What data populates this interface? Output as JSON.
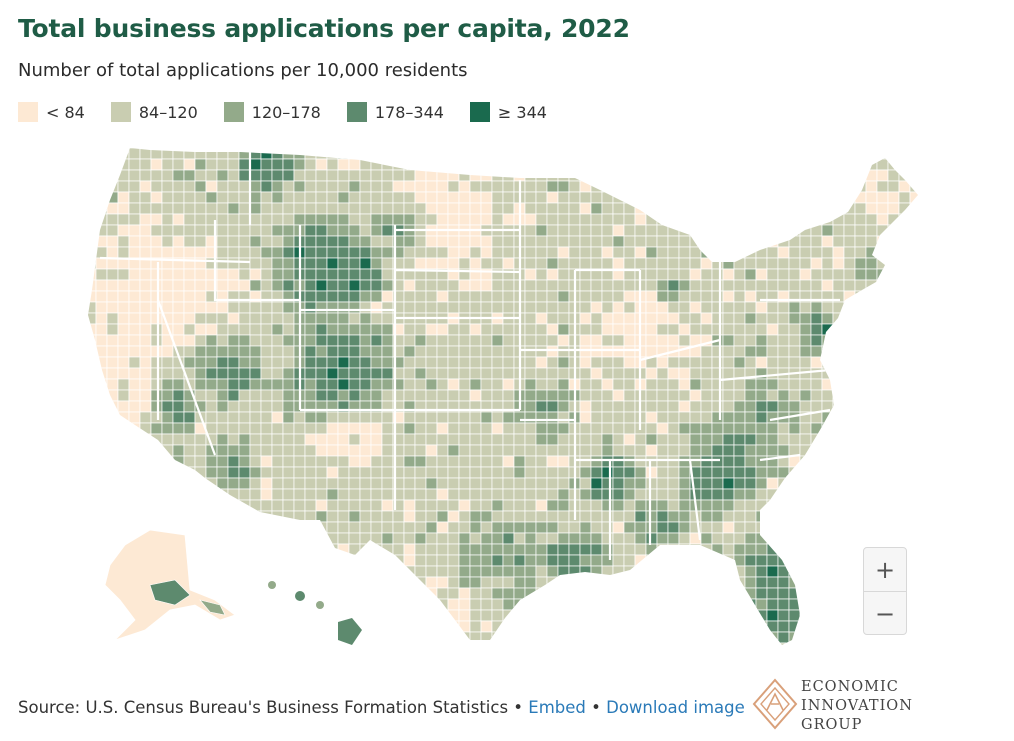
{
  "title": "Total business applications per capita, 2022",
  "subtitle": "Number of total applications per 10,000 residents",
  "legend": {
    "items": [
      {
        "label": "< 84",
        "color": "#fde9d4"
      },
      {
        "label": "84–120",
        "color": "#c9cdb1"
      },
      {
        "label": "120–178",
        "color": "#93aa8a"
      },
      {
        "label": "178–344",
        "color": "#5d8a6e"
      },
      {
        "label": "≥ 344",
        "color": "#1a6a4e"
      }
    ]
  },
  "zoom": {
    "in_label": "+",
    "out_label": "−"
  },
  "footer": {
    "source": "Source: U.S. Census Bureau's Business Formation Statistics",
    "sep1": " • ",
    "embed": "Embed",
    "sep2": " • ",
    "download": "Download image"
  },
  "logo": {
    "line1": "ECONOMIC",
    "line2": "INNOVATION",
    "line3": "GROUP"
  },
  "colors": {
    "border": "#ffffff",
    "state_border": "#ffffff",
    "logo_accent": "#d9a07a"
  }
}
